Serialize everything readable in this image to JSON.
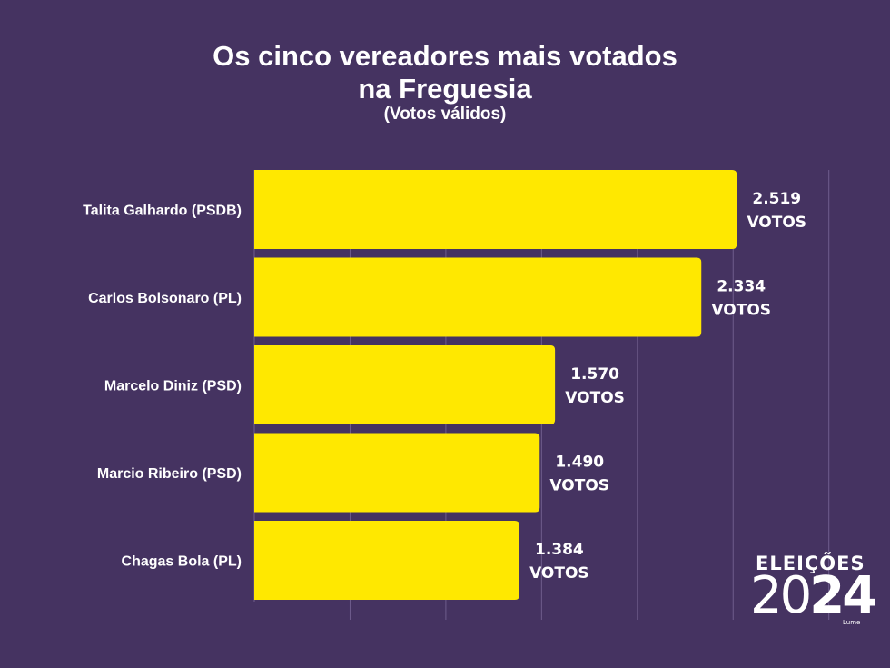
{
  "header": {
    "title_line1": "Os cinco vereadores mais votados",
    "title_line2": "na Freguesia",
    "subtitle": "(Votos válidos)"
  },
  "chart_data": {
    "type": "bar",
    "orientation": "horizontal",
    "categories": [
      "Talita Galhardo (PSDB)",
      "Carlos Bolsonaro (PL)",
      "Marcelo Diniz (PSD)",
      "Marcio Ribeiro (PSD)",
      "Chagas Bola (PL)"
    ],
    "values": [
      2519,
      2334,
      1570,
      1490,
      1384
    ],
    "value_labels": [
      "2.519",
      "2.334",
      "1.570",
      "1.490",
      "1.384"
    ],
    "value_unit": "VOTOS",
    "xlim": [
      0,
      3000
    ],
    "grid": true,
    "colors": {
      "bar": "#FFE800",
      "background": "#453361",
      "grid": "#6E5C8C",
      "text": "#FFFFFF"
    }
  },
  "logo": {
    "line1": "ELEIÇÕES",
    "year_light": "20",
    "year_bold": "24",
    "brand": "Lume"
  }
}
